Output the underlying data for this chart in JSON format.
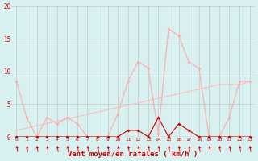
{
  "x": [
    0,
    1,
    2,
    3,
    4,
    5,
    6,
    7,
    8,
    9,
    10,
    11,
    12,
    13,
    14,
    15,
    16,
    17,
    18,
    19,
    20,
    21,
    22,
    23
  ],
  "rafales": [
    8.5,
    3.0,
    0.0,
    3.0,
    2.0,
    3.0,
    2.0,
    0.0,
    0.0,
    0.0,
    3.5,
    8.5,
    11.5,
    10.5,
    0.5,
    16.5,
    15.5,
    11.5,
    10.5,
    0.0,
    0.0,
    3.0,
    8.5,
    8.5
  ],
  "moyen": [
    0.0,
    0.0,
    0.0,
    0.0,
    0.0,
    0.0,
    0.0,
    0.0,
    0.0,
    0.0,
    0.0,
    1.0,
    1.0,
    0.0,
    3.0,
    0.0,
    2.0,
    1.0,
    0.0,
    0.0,
    0.0,
    0.0,
    0.0,
    0.0
  ],
  "trend": [
    1.0,
    1.35,
    1.7,
    2.05,
    2.4,
    2.75,
    3.1,
    3.45,
    3.8,
    4.15,
    4.5,
    4.85,
    5.2,
    5.55,
    5.9,
    6.25,
    6.6,
    6.95,
    7.3,
    7.65,
    8.0,
    8.0,
    8.0,
    8.5
  ],
  "color_rafales": "#ffaaaa",
  "color_moyen": "#cc0000",
  "color_trend": "#ffbbbb",
  "bg_color": "#d8f0f0",
  "grid_color": "#b0b0b0",
  "text_color": "#cc0000",
  "xlabel": "Vent moyen/en rafales ( km/h )",
  "ylim": [
    0,
    20
  ],
  "yticks": [
    0,
    5,
    10,
    15,
    20
  ],
  "xlim": [
    -0.5,
    23.5
  ]
}
